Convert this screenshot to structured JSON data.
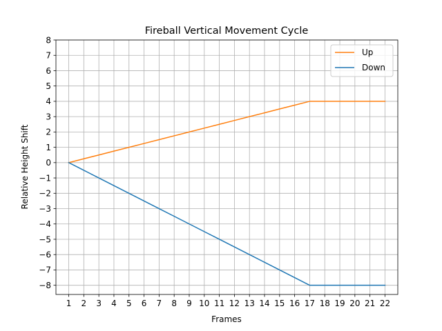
{
  "chart_data": {
    "type": "line",
    "title": "Fireball Vertical Movement Cycle",
    "xlabel": "Frames",
    "ylabel": "Relative Height Shift",
    "x": [
      1,
      2,
      3,
      4,
      5,
      6,
      7,
      8,
      9,
      10,
      11,
      12,
      13,
      14,
      15,
      16,
      17,
      18,
      19,
      20,
      21,
      22
    ],
    "xlim": [
      0.15,
      22.85
    ],
    "ylim": [
      -8.6,
      8
    ],
    "xticks": [
      1,
      2,
      3,
      4,
      5,
      6,
      7,
      8,
      9,
      10,
      11,
      12,
      13,
      14,
      15,
      16,
      17,
      18,
      19,
      20,
      21,
      22
    ],
    "yticks": [
      -8,
      -7,
      -6,
      -5,
      -4,
      -3,
      -2,
      -1,
      0,
      1,
      2,
      3,
      4,
      5,
      6,
      7,
      8
    ],
    "grid": true,
    "legend_position": "top-right",
    "series": [
      {
        "name": "Up",
        "color": "#ff7f0e",
        "values": [
          0,
          0.25,
          0.5,
          0.75,
          1,
          1.25,
          1.5,
          1.75,
          2,
          2.25,
          2.5,
          2.75,
          3,
          3.25,
          3.5,
          3.75,
          4,
          4,
          4,
          4,
          4,
          4
        ]
      },
      {
        "name": "Down",
        "color": "#1f77b4",
        "values": [
          0,
          -0.5,
          -1,
          -1.5,
          -2,
          -2.5,
          -3,
          -3.5,
          -4,
          -4.5,
          -5,
          -5.5,
          -6,
          -6.5,
          -7,
          -7.5,
          -8,
          -8,
          -8,
          -8,
          -8,
          -8
        ]
      }
    ]
  }
}
